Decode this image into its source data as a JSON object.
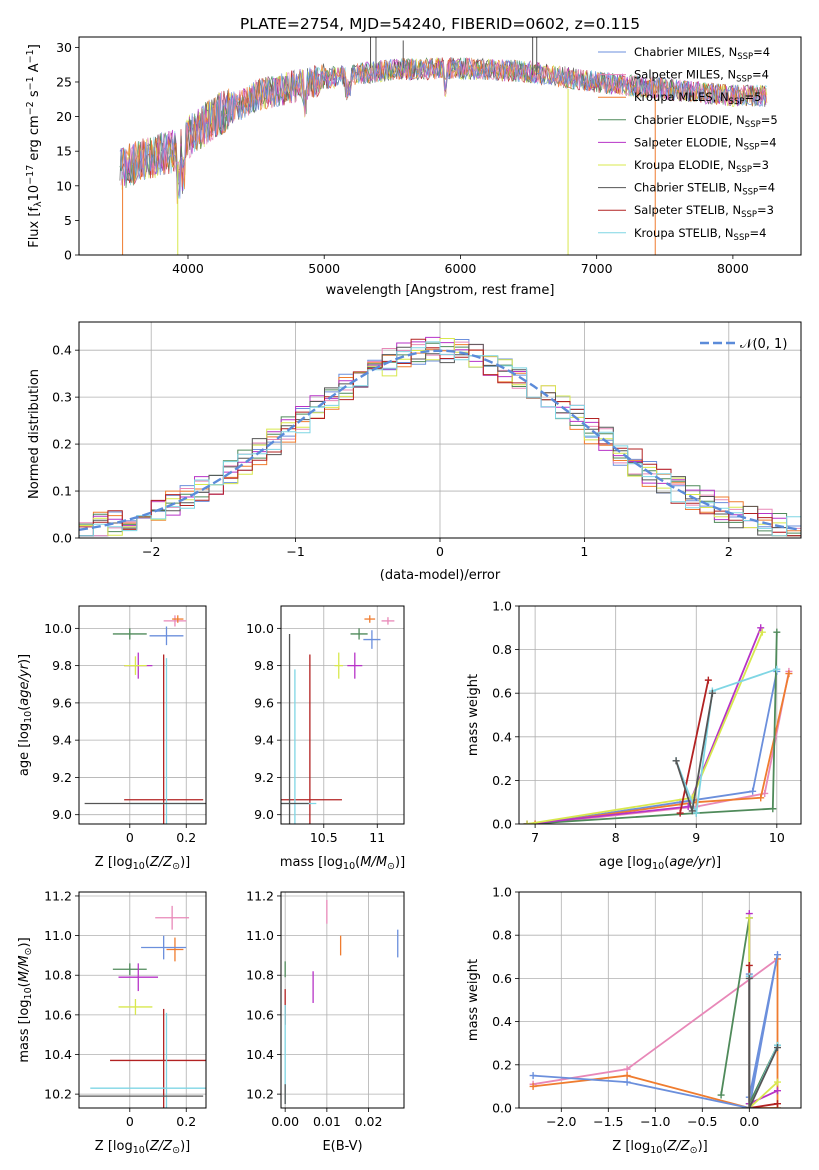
{
  "figure_title": "PLATE=2754, MJD=54240, FIBERID=0602, z=0.115",
  "chart_data": [
    {
      "id": "spectrum",
      "type": "line",
      "xlabel": "wavelength [Angstrom, rest frame]",
      "ylabel": "Flux [f$_\\lambda$10$^{-17}$ erg cm$^{-2}$ s$^{-1}$ A$^{-1}$]",
      "ylabel_parts": [
        "Flux [f",
        "λ",
        "10",
        "−17",
        " erg cm",
        "−2",
        " s",
        "−1",
        " A",
        "−1",
        "]"
      ],
      "xlim": [
        3200,
        8500
      ],
      "ylim": [
        0,
        31.5
      ],
      "xticks": [
        4000,
        5000,
        6000,
        7000,
        8000
      ],
      "yticks": [
        0,
        5,
        10,
        15,
        20,
        25,
        30
      ],
      "legend_position": "right",
      "series": [
        {
          "name": "Chabrier MILES, N$_{SSP}$=4",
          "label": "Chabrier MILES, N",
          "sub": "SSP",
          "eq": "=4",
          "color": "#6b8fdc"
        },
        {
          "name": "Salpeter MILES, N$_{SSP}$=4",
          "label": "Salpeter MILES, N",
          "sub": "SSP",
          "eq": "=4",
          "color": "#e888b8"
        },
        {
          "name": "Kroupa MILES, N$_{SSP}$=5",
          "label": "Kroupa MILES, N",
          "sub": "SSP",
          "eq": "=5",
          "color": "#ef7c2f"
        },
        {
          "name": "Chabrier ELODIE, N$_{SSP}$=5",
          "label": "Chabrier ELODIE, N",
          "sub": "SSP",
          "eq": "=5",
          "color": "#4f8a5a"
        },
        {
          "name": "Salpeter ELODIE, N$_{SSP}$=4",
          "label": "Salpeter ELODIE, N",
          "sub": "SSP",
          "eq": "=4",
          "color": "#b733c7"
        },
        {
          "name": "Kroupa ELODIE, N$_{SSP}$=3",
          "label": "Kroupa ELODIE, N",
          "sub": "SSP",
          "eq": "=3",
          "color": "#d8e84e"
        },
        {
          "name": "Chabrier STELIB, N$_{SSP}$=4",
          "label": "Chabrier STELIB, N",
          "sub": "SSP",
          "eq": "=4",
          "color": "#555555"
        },
        {
          "name": "Salpeter STELIB, N$_{SSP}$=3",
          "label": "Salpeter STELIB, N",
          "sub": "SSP",
          "eq": "=3",
          "color": "#b22222"
        },
        {
          "name": "Kroupa STELIB, N$_{SSP}$=4",
          "label": "Kroupa STELIB, N",
          "sub": "SSP",
          "eq": "=4",
          "color": "#7fd6e4"
        }
      ],
      "continuum": [
        [
          3500,
          12.5
        ],
        [
          3700,
          14
        ],
        [
          3900,
          15
        ],
        [
          4000,
          17
        ],
        [
          4200,
          20
        ],
        [
          4500,
          23
        ],
        [
          5000,
          25.5
        ],
        [
          5500,
          26.8
        ],
        [
          6000,
          27
        ],
        [
          6500,
          26.5
        ],
        [
          7000,
          25
        ],
        [
          7500,
          24
        ],
        [
          8000,
          23
        ],
        [
          8250,
          23
        ]
      ],
      "spikes": [
        {
          "x": 3520,
          "y0": 0,
          "y1": 11,
          "color": "#ef7c2f"
        },
        {
          "x": 3925,
          "y0": 0,
          "y1": 13,
          "color": "#d8e84e"
        },
        {
          "x": 6790,
          "y0": 0,
          "y1": 24,
          "color": "#d8e84e"
        },
        {
          "x": 7430,
          "y0": 0,
          "y1": 24,
          "color": "#ef7c2f"
        },
        {
          "x": 5340,
          "y0": 27,
          "y1": 31.5,
          "color": "#555555"
        },
        {
          "x": 5380,
          "y0": 27,
          "y1": 31.5,
          "color": "#555555"
        },
        {
          "x": 5580,
          "y0": 27,
          "y1": 31,
          "color": "#555555"
        },
        {
          "x": 6530,
          "y0": 26,
          "y1": 31.5,
          "color": "#555555"
        },
        {
          "x": 6560,
          "y0": 26,
          "y1": 31.5,
          "color": "#555555"
        }
      ]
    },
    {
      "id": "residual_histogram",
      "type": "line",
      "xlabel": "(data-model)/error",
      "ylabel": "Normed distribution",
      "xlim": [
        -2.5,
        2.5
      ],
      "ylim": [
        0,
        0.46
      ],
      "xticks": [
        -2,
        -1,
        0,
        1,
        2
      ],
      "xtick_labels": [
        "−2",
        "−1",
        "0",
        "1",
        "2"
      ],
      "yticks": [
        0.0,
        0.1,
        0.2,
        0.3,
        0.4
      ],
      "ytick_labels": [
        "0.0",
        "0.1",
        "0.2",
        "0.3",
        "0.4"
      ],
      "reference_curve": {
        "name": "$\\mathcal{N}(0,1)$",
        "label": "𝒩(0, 1)",
        "color": "#5b8bd9",
        "style": "dashed"
      },
      "legend_position": "upper right",
      "hist_edges": [
        -2.5,
        -2.4,
        -2.3,
        -2.2,
        -2.1,
        -2.0,
        -1.9,
        -1.8,
        -1.7,
        -1.6,
        -1.5,
        -1.4,
        -1.3,
        -1.2,
        -1.1,
        -1.0,
        -0.9,
        -0.8,
        -0.7,
        -0.6,
        -0.5,
        -0.4,
        -0.3,
        -0.2,
        -0.1,
        0.0,
        0.1,
        0.2,
        0.3,
        0.4,
        0.5,
        0.6,
        0.7,
        0.8,
        0.9,
        1.0,
        1.1,
        1.2,
        1.3,
        1.4,
        1.5,
        1.6,
        1.7,
        1.8,
        1.9,
        2.0,
        2.1,
        2.2,
        2.3,
        2.4,
        2.5
      ]
    },
    {
      "id": "age_vs_Z",
      "type": "scatter",
      "xlabel": "Z [log$_{10}$(Z/Z$_\\odot$)]",
      "ylabel": "age  [log$_{10}$(age/yr)]",
      "xlim": [
        -0.18,
        0.27
      ],
      "ylim": [
        8.95,
        10.12
      ],
      "xticks": [
        0.0,
        0.2
      ],
      "yticks": [
        9.0,
        9.2,
        9.4,
        9.6,
        9.8,
        10.0
      ],
      "points": [
        {
          "x": 0.0,
          "y": 9.97,
          "xerr": 0.06,
          "yerr": 0.03,
          "color": "#4f8a5a"
        },
        {
          "x": 0.13,
          "y": 9.96,
          "xerr": 0.06,
          "yerr": 0.05,
          "color": "#6b8fdc"
        },
        {
          "x": 0.16,
          "y": 10.04,
          "xerr": 0.04,
          "yerr": 0.03,
          "color": "#e888b8"
        },
        {
          "x": 0.17,
          "y": 10.05,
          "xerr": 0.02,
          "yerr": 0.02,
          "color": "#ef7c2f"
        },
        {
          "x": 0.03,
          "y": 9.8,
          "xerr": 0.05,
          "yerr": 0.07,
          "color": "#b733c7"
        },
        {
          "x": 0.02,
          "y": 9.8,
          "xerr": 0.04,
          "yerr": 0.05,
          "color": "#d8e84e"
        },
        {
          "x": 0.12,
          "y": 9.08,
          "xerr": 0.14,
          "yerr": 0.78,
          "color": "#b22222"
        },
        {
          "x": 0.13,
          "y": 9.06,
          "xerr": 0.13,
          "yerr": 0.78,
          "color": "#7fd6e4"
        },
        {
          "x": 0.06,
          "y": 9.06,
          "xerr": 0.22,
          "yerr": 0.0,
          "color": "#555555"
        }
      ]
    },
    {
      "id": "age_vs_mass",
      "type": "scatter",
      "xlabel": "mass [log$_{10}$(M/M$_\\odot$)]",
      "ylabel": "",
      "xlim": [
        10.1,
        11.25
      ],
      "ylim": [
        8.95,
        10.12
      ],
      "xticks": [
        10.5,
        11.0
      ],
      "yticks": [
        9.0,
        9.2,
        9.4,
        9.6,
        9.8,
        10.0
      ],
      "points": [
        {
          "x": 10.83,
          "y": 9.97,
          "xerr": 0.08,
          "yerr": 0.03,
          "color": "#4f8a5a"
        },
        {
          "x": 10.95,
          "y": 9.94,
          "xerr": 0.08,
          "yerr": 0.05,
          "color": "#6b8fdc"
        },
        {
          "x": 11.1,
          "y": 10.04,
          "xerr": 0.06,
          "yerr": 0.02,
          "color": "#e888b8"
        },
        {
          "x": 10.93,
          "y": 10.05,
          "xerr": 0.05,
          "yerr": 0.02,
          "color": "#ef7c2f"
        },
        {
          "x": 10.79,
          "y": 9.8,
          "xerr": 0.07,
          "yerr": 0.07,
          "color": "#b733c7"
        },
        {
          "x": 10.64,
          "y": 9.8,
          "xerr": 0.04,
          "yerr": 0.07,
          "color": "#d8e84e"
        },
        {
          "x": 10.37,
          "y": 9.08,
          "xerr": 0.3,
          "yerr": 0.78,
          "color": "#b22222"
        },
        {
          "x": 10.23,
          "y": 9.06,
          "xerr": 0.2,
          "yerr": 0.72,
          "color": "#7fd6e4"
        },
        {
          "x": 10.18,
          "y": 9.06,
          "xerr": 0.18,
          "yerr": 0.91,
          "color": "#555555"
        }
      ]
    },
    {
      "id": "massweight_vs_age",
      "type": "line",
      "xlabel": "age  [log$_{10}$(age/yr)]",
      "ylabel": "mass weight",
      "xlim": [
        6.8,
        10.3
      ],
      "ylim": [
        0,
        1.0
      ],
      "xticks": [
        7,
        8,
        9,
        10
      ],
      "yticks": [
        0.0,
        0.2,
        0.4,
        0.6,
        0.8,
        1.0
      ],
      "series": [
        {
          "color": "#6b8fdc",
          "x": [
            7.0,
            8.8,
            9.7,
            10.0
          ],
          "y": [
            0.0,
            0.1,
            0.15,
            0.7
          ]
        },
        {
          "color": "#e888b8",
          "x": [
            7.0,
            9.0,
            9.85,
            10.15
          ],
          "y": [
            0.0,
            0.08,
            0.14,
            0.7
          ]
        },
        {
          "color": "#ef7c2f",
          "x": [
            7.0,
            9.0,
            9.8,
            10.15
          ],
          "y": [
            0.0,
            0.1,
            0.12,
            0.69
          ]
        },
        {
          "color": "#4f8a5a",
          "x": [
            6.9,
            9.0,
            9.95,
            10.0
          ],
          "y": [
            0.0,
            0.05,
            0.07,
            0.88
          ]
        },
        {
          "color": "#b733c7",
          "x": [
            6.9,
            8.9,
            9.8
          ],
          "y": [
            0.0,
            0.08,
            0.9
          ]
        },
        {
          "color": "#d8e84e",
          "x": [
            6.9,
            8.95,
            9.82
          ],
          "y": [
            0.0,
            0.12,
            0.88
          ]
        },
        {
          "color": "#b22222",
          "x": [
            8.8,
            9.15
          ],
          "y": [
            0.05,
            0.66
          ]
        },
        {
          "color": "#7fd6e4",
          "x": [
            8.75,
            9.0,
            9.2,
            10.0
          ],
          "y": [
            0.29,
            0.05,
            0.61,
            0.71
          ]
        },
        {
          "color": "#555555",
          "x": [
            8.75,
            8.95,
            9.2
          ],
          "y": [
            0.29,
            0.06,
            0.6
          ]
        }
      ]
    },
    {
      "id": "mass_vs_Z",
      "type": "scatter",
      "xlabel": "Z [log$_{10}$(Z/Z$_\\odot$)]",
      "ylabel": "mass [log$_{10}$(M/M$_\\odot$)]",
      "xlim": [
        -0.18,
        0.27
      ],
      "ylim": [
        10.13,
        11.22
      ],
      "xticks": [
        0.0,
        0.2
      ],
      "yticks": [
        10.2,
        10.4,
        10.6,
        10.8,
        11.0,
        11.2
      ],
      "points": [
        {
          "x": 0.15,
          "y": 11.09,
          "xerr": 0.06,
          "yerr": 0.06,
          "color": "#e888b8"
        },
        {
          "x": 0.16,
          "y": 10.93,
          "xerr": 0.03,
          "yerr": 0.06,
          "color": "#ef7c2f"
        },
        {
          "x": 0.12,
          "y": 10.94,
          "xerr": 0.08,
          "yerr": 0.06,
          "color": "#6b8fdc"
        },
        {
          "x": 0.0,
          "y": 10.83,
          "xerr": 0.06,
          "yerr": 0.03,
          "color": "#4f8a5a"
        },
        {
          "x": 0.03,
          "y": 10.79,
          "xerr": 0.07,
          "yerr": 0.07,
          "color": "#b733c7"
        },
        {
          "x": 0.02,
          "y": 10.64,
          "xerr": 0.06,
          "yerr": 0.04,
          "color": "#d8e84e"
        },
        {
          "x": 0.12,
          "y": 10.37,
          "xerr": 0.19,
          "yerr": 0.26,
          "color": "#b22222"
        },
        {
          "x": 0.13,
          "y": 10.23,
          "xerr": 0.27,
          "yerr": 0.38,
          "color": "#7fd6e4"
        },
        {
          "x": 0.04,
          "y": 10.19,
          "xerr": 0.22,
          "yerr": 0.0,
          "color": "#555555"
        }
      ]
    },
    {
      "id": "mass_vs_EBV",
      "type": "scatter",
      "xlabel": "E(B-V)",
      "ylabel": "",
      "xlim": [
        -0.001,
        0.0285
      ],
      "ylim": [
        10.13,
        11.22
      ],
      "xticks": [
        0.0,
        0.01,
        0.02
      ],
      "xtick_labels": [
        "0.00",
        "0.01",
        "0.02"
      ],
      "yticks": [
        10.2,
        10.4,
        10.6,
        10.8,
        11.0,
        11.2
      ],
      "points": [
        {
          "x": 0.01,
          "y": 11.12,
          "yerr": 0.06,
          "color": "#e888b8"
        },
        {
          "x": 0.027,
          "y": 10.96,
          "yerr": 0.07,
          "color": "#6b8fdc"
        },
        {
          "x": 0.0133,
          "y": 10.95,
          "yerr": 0.05,
          "color": "#ef7c2f"
        },
        {
          "x": 0.0,
          "y": 10.83,
          "yerr": 0.04,
          "color": "#4f8a5a"
        },
        {
          "x": 0.0067,
          "y": 10.74,
          "yerr": 0.08,
          "color": "#b733c7"
        },
        {
          "x": 0.0,
          "y": 10.64,
          "yerr": 0.09,
          "color": "#b22222"
        },
        {
          "x": 0.0,
          "y": 10.4,
          "yerr": 0.25,
          "color": "#7fd6e4"
        },
        {
          "x": 0.0,
          "y": 10.2,
          "yerr": 0.05,
          "color": "#555555"
        }
      ]
    },
    {
      "id": "massweight_vs_Z",
      "type": "line",
      "xlabel": "Z [log$_{10}$(Z/Z$_\\odot$)]",
      "ylabel": "mass weight",
      "xlim": [
        -2.45,
        0.55
      ],
      "ylim": [
        0,
        1.0
      ],
      "xticks": [
        -2.0,
        -1.5,
        -1.0,
        -0.5,
        0.0
      ],
      "xtick_labels": [
        "−2.0",
        "−1.5",
        "−1.0",
        "−0.5",
        "0.0"
      ],
      "yticks": [
        0.0,
        0.2,
        0.4,
        0.6,
        0.8,
        1.0
      ],
      "series": [
        {
          "color": "#e888b8",
          "x": [
            -2.3,
            -1.3,
            0.3
          ],
          "y": [
            0.11,
            0.18,
            0.69
          ]
        },
        {
          "color": "#ef7c2f",
          "x": [
            -2.3,
            -1.3,
            0.0,
            0.3,
            0.3
          ],
          "y": [
            0.1,
            0.15,
            0.0,
            0.0,
            0.69
          ]
        },
        {
          "color": "#6b8fdc",
          "x": [
            -2.3,
            -1.3,
            0.0,
            0.3,
            0.0,
            0.0
          ],
          "y": [
            0.15,
            0.12,
            0.0,
            0.71,
            0.05,
            0.62
          ]
        },
        {
          "color": "#4f8a5a",
          "x": [
            -0.3,
            0.0,
            0.0,
            0.3
          ],
          "y": [
            0.06,
            0.88,
            0.02,
            0.29
          ]
        },
        {
          "color": "#b733c7",
          "x": [
            0.0,
            0.0,
            0.3
          ],
          "y": [
            0.9,
            0.02,
            0.08
          ]
        },
        {
          "color": "#d8e84e",
          "x": [
            0.0,
            0.0,
            0.3
          ],
          "y": [
            0.88,
            0.0,
            0.12
          ]
        },
        {
          "color": "#b22222",
          "x": [
            0.0,
            0.0,
            0.3
          ],
          "y": [
            0.66,
            0.0,
            0.02
          ]
        },
        {
          "color": "#7fd6e4",
          "x": [
            0.0,
            0.0,
            0.3
          ],
          "y": [
            0.61,
            0.0,
            0.29
          ]
        },
        {
          "color": "#555555",
          "x": [
            0.0,
            0.0,
            0.3
          ],
          "y": [
            0.6,
            0.0,
            0.28
          ]
        }
      ]
    }
  ]
}
